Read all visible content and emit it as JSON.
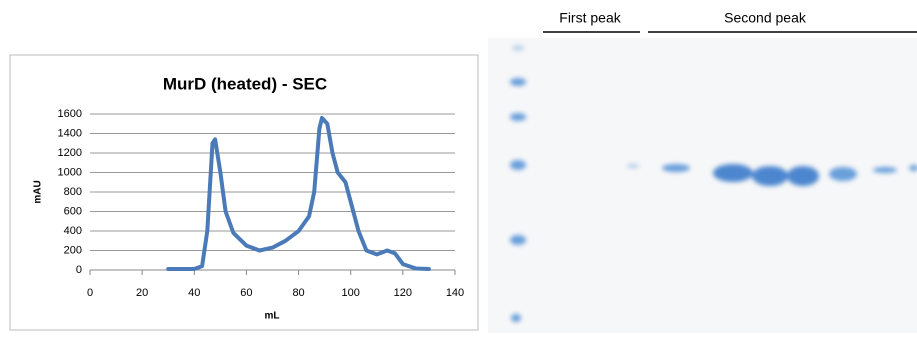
{
  "chart_data": {
    "type": "line",
    "title": "MurD (heated) - SEC",
    "xlabel": "mL",
    "ylabel": "mAU",
    "x": [
      30,
      40,
      43,
      45,
      47,
      48,
      50,
      52,
      55,
      60,
      65,
      70,
      75,
      80,
      84,
      86,
      88,
      89,
      91,
      93,
      95,
      98,
      100,
      103,
      106,
      110,
      114,
      117,
      120,
      125,
      130
    ],
    "values": [
      10,
      10,
      40,
      400,
      1300,
      1340,
      1000,
      600,
      380,
      250,
      200,
      230,
      300,
      400,
      550,
      800,
      1450,
      1560,
      1500,
      1200,
      1000,
      900,
      700,
      400,
      200,
      160,
      200,
      170,
      60,
      15,
      10
    ],
    "color": "#4a7ab8",
    "xlim": [
      0,
      140
    ],
    "xticks": [
      0,
      20,
      40,
      60,
      80,
      100,
      120,
      140
    ],
    "ylim": [
      0,
      1600
    ],
    "yticks": [
      0,
      200,
      400,
      600,
      800,
      1000,
      1200,
      1400,
      1600
    ],
    "grid": true
  },
  "gel": {
    "labels": [
      "First peak",
      "Second peak"
    ]
  }
}
